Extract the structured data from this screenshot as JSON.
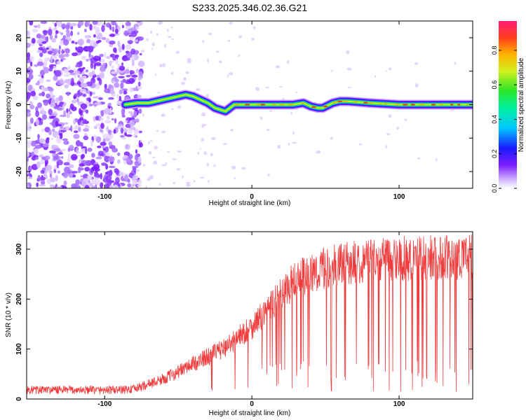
{
  "chart_data": [
    {
      "type": "heatmap",
      "title": "S233.2025.346.02.36.G21",
      "xlabel": "Height of straight line (km)",
      "ylabel": "Frequency (Hz)",
      "xlim": [
        -153,
        150
      ],
      "ylim": [
        -25,
        25
      ],
      "x_ticks": [
        -100,
        0,
        100
      ],
      "y_ticks": [
        -20,
        -10,
        0,
        10,
        20
      ],
      "colorbar": {
        "label": "Normalized spectral amplitude",
        "range": [
          0,
          0.97
        ],
        "ticks": [
          "0.0",
          "0.2",
          "0.4",
          "0.6",
          "0.8"
        ],
        "tick_values": [
          0,
          0.2,
          0.4,
          0.6,
          0.8
        ]
      },
      "ridge": {
        "x": [
          -86,
          -78,
          -70,
          -60,
          -50,
          -45,
          -40,
          -30,
          -25,
          -18,
          -12,
          -8,
          0,
          10,
          20,
          28,
          35,
          40,
          45,
          48,
          55,
          60,
          65,
          80,
          100,
          120,
          140,
          150
        ],
        "y": [
          0,
          0.5,
          0.5,
          1.5,
          2.5,
          3,
          2.5,
          0.5,
          -1,
          -2,
          0,
          0,
          0,
          0,
          0,
          0,
          0.5,
          -0.5,
          -1,
          -1,
          0.5,
          1,
          1,
          0.5,
          0,
          0,
          0,
          0
        ]
      },
      "noise_region_x": [
        -153,
        -75
      ]
    },
    {
      "type": "line",
      "xlabel": "Height of straight line (km)",
      "ylabel": "SNR (10 * v/v)",
      "xlim": [
        -153,
        150
      ],
      "ylim": [
        0,
        335
      ],
      "x_ticks": [
        -100,
        0,
        100
      ],
      "y_ticks": [
        0,
        100,
        200,
        300
      ],
      "color": "#f03c3c",
      "trend": {
        "x": [
          -153,
          -90,
          -80,
          -60,
          -40,
          -20,
          0,
          20,
          30,
          50,
          80,
          150
        ],
        "y": [
          18,
          18,
          20,
          40,
          70,
          100,
          145,
          210,
          240,
          262,
          280,
          285
        ]
      }
    }
  ]
}
